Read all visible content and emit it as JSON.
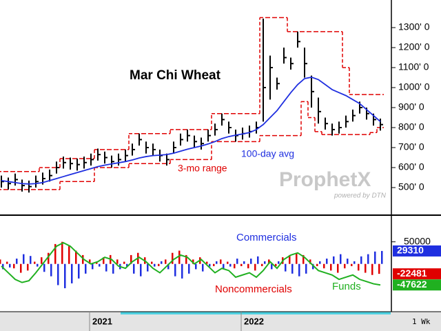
{
  "chart_data": [
    {
      "type": "hlc",
      "title": "Mar Chi Wheat",
      "interval": "1 Wk",
      "watermark": {
        "brand": "ProphetX",
        "tagline": "powered by DTN"
      },
      "categories": [
        null,
        null,
        null,
        null,
        null,
        null,
        null,
        null,
        null,
        null,
        null,
        null,
        null,
        "2021",
        null,
        null,
        null,
        null,
        null,
        null,
        null,
        null,
        null,
        null,
        null,
        null,
        null,
        null,
        null,
        null,
        null,
        null,
        null,
        null,
        null,
        "2022",
        null,
        null,
        null,
        null,
        null,
        null,
        null,
        null,
        null,
        null,
        null,
        null,
        null,
        null,
        null,
        null,
        null,
        null,
        null,
        null
      ],
      "close": [
        530,
        520,
        540,
        510,
        505,
        530,
        545,
        560,
        600,
        625,
        620,
        615,
        625,
        640,
        665,
        650,
        630,
        640,
        660,
        690,
        740,
        700,
        690,
        660,
        640,
        700,
        740,
        760,
        730,
        720,
        760,
        790,
        840,
        800,
        760,
        770,
        780,
        800,
        1000,
        1100,
        1020,
        1150,
        1120,
        1230,
        1120,
        980,
        880,
        820,
        790,
        800,
        830,
        860,
        900,
        870,
        840,
        815
      ],
      "high": [
        560,
        550,
        570,
        540,
        535,
        560,
        575,
        590,
        630,
        655,
        650,
        645,
        655,
        670,
        695,
        680,
        660,
        670,
        690,
        720,
        770,
        730,
        720,
        690,
        670,
        730,
        770,
        790,
        760,
        750,
        790,
        820,
        870,
        830,
        790,
        800,
        810,
        830,
        1345,
        1160,
        1050,
        1200,
        1150,
        1280,
        1200,
        1060,
        950,
        850,
        820,
        830,
        860,
        890,
        930,
        900,
        870,
        845
      ],
      "low": [
        500,
        490,
        510,
        480,
        475,
        500,
        515,
        530,
        570,
        595,
        590,
        585,
        595,
        610,
        635,
        620,
        600,
        610,
        630,
        660,
        710,
        670,
        660,
        630,
        610,
        670,
        710,
        730,
        700,
        690,
        730,
        760,
        810,
        770,
        730,
        740,
        750,
        770,
        830,
        940,
        990,
        1120,
        1090,
        1200,
        1050,
        900,
        820,
        790,
        760,
        770,
        800,
        830,
        870,
        840,
        810,
        785
      ],
      "series": [
        {
          "name": "100-day avg",
          "color": "#1f2fe0",
          "values": [
            535,
            530,
            525,
            520,
            518,
            520,
            525,
            535,
            545,
            555,
            565,
            575,
            585,
            595,
            605,
            612,
            618,
            624,
            630,
            638,
            648,
            655,
            660,
            662,
            665,
            672,
            682,
            692,
            700,
            708,
            718,
            730,
            745,
            755,
            762,
            768,
            775,
            790,
            815,
            850,
            885,
            930,
            975,
            1015,
            1045,
            1052,
            1040,
            1015,
            990,
            975,
            960,
            940,
            920,
            890,
            860,
            830
          ]
        },
        {
          "name": "3-mo range",
          "color": "#e00000",
          "upper": [
            580,
            580,
            580,
            580,
            580,
            580,
            600,
            600,
            600,
            645,
            645,
            645,
            645,
            645,
            690,
            690,
            690,
            690,
            690,
            770,
            770,
            770,
            770,
            770,
            770,
            790,
            790,
            790,
            790,
            790,
            790,
            870,
            870,
            870,
            870,
            870,
            870,
            870,
            1350,
            1350,
            1350,
            1350,
            1280,
            1280,
            1280,
            1280,
            1280,
            1280,
            1280,
            1280,
            1100,
            965,
            965,
            965,
            965,
            965
          ],
          "lower": [
            490,
            490,
            490,
            490,
            490,
            490,
            490,
            490,
            490,
            530,
            530,
            530,
            530,
            530,
            600,
            600,
            600,
            600,
            600,
            620,
            620,
            620,
            620,
            620,
            620,
            640,
            640,
            640,
            640,
            640,
            640,
            730,
            730,
            730,
            730,
            730,
            730,
            730,
            760,
            760,
            760,
            760,
            760,
            760,
            930,
            850,
            780,
            765,
            765,
            765,
            765,
            765,
            765,
            765,
            775,
            800
          ]
        }
      ],
      "ylim": [
        369,
        1438
      ],
      "yticks": [
        {
          "value": 500,
          "label": "500' 0"
        },
        {
          "value": 600,
          "label": "600' 0"
        },
        {
          "value": 700,
          "label": "700' 0"
        },
        {
          "value": 800,
          "label": "800' 0"
        },
        {
          "value": 900,
          "label": "900' 0"
        },
        {
          "value": 1000,
          "label": "1000' 0"
        },
        {
          "value": 1100,
          "label": "1100' 0"
        },
        {
          "value": 1200,
          "label": "1200' 0"
        },
        {
          "value": 1300,
          "label": "1300' 0"
        }
      ]
    },
    {
      "type": "bar",
      "series": [
        {
          "name": "Commercials",
          "color": "#1f2fe0",
          "values": [
            -12000,
            -8000,
            12000,
            22000,
            18000,
            -6000,
            -18000,
            -28000,
            -48000,
            -55000,
            -44000,
            -33000,
            -22000,
            -12000,
            -6000,
            -17000,
            -22000,
            -12000,
            -6000,
            -22000,
            -28000,
            -17000,
            -6000,
            6000,
            -12000,
            -28000,
            -33000,
            -22000,
            -12000,
            -17000,
            -6000,
            6000,
            -12000,
            -6000,
            12000,
            6000,
            12000,
            17000,
            6000,
            -12000,
            6000,
            -17000,
            -22000,
            -28000,
            -22000,
            -12000,
            6000,
            12000,
            17000,
            22000,
            12000,
            6000,
            17000,
            22000,
            28000,
            29310
          ]
        },
        {
          "name": "Noncommercials",
          "color": "#e00000",
          "values": [
            10000,
            5000,
            -10000,
            -20000,
            -15000,
            5000,
            15000,
            25000,
            45000,
            50000,
            40000,
            30000,
            20000,
            10000,
            5000,
            15000,
            20000,
            10000,
            5000,
            20000,
            25000,
            15000,
            5000,
            -5000,
            10000,
            25000,
            30000,
            20000,
            10000,
            15000,
            5000,
            -5000,
            10000,
            5000,
            -10000,
            -5000,
            -10000,
            -15000,
            -5000,
            10000,
            -5000,
            15000,
            20000,
            25000,
            20000,
            10000,
            -5000,
            -10000,
            -15000,
            -20000,
            -10000,
            -5000,
            -15000,
            -20000,
            -25000,
            -22481
          ]
        },
        {
          "name": "Funds",
          "color": "#20b020",
          "type": "line",
          "values": [
            -5000,
            -20000,
            -35000,
            -42000,
            -38000,
            -20000,
            0,
            20000,
            40000,
            48000,
            40000,
            25000,
            10000,
            0,
            5000,
            15000,
            10000,
            -5000,
            -10000,
            5000,
            15000,
            5000,
            -10000,
            -20000,
            -5000,
            10000,
            20000,
            15000,
            0,
            10000,
            -5000,
            -20000,
            -10000,
            -15000,
            -30000,
            -25000,
            -20000,
            -30000,
            -15000,
            5000,
            -10000,
            10000,
            20000,
            25000,
            15000,
            0,
            -15000,
            -20000,
            -25000,
            -35000,
            -30000,
            -25000,
            -35000,
            -40000,
            -45000,
            -47622
          ]
        }
      ],
      "ylim": [
        -105000,
        101000
      ],
      "yticks": [
        50000
      ]
    }
  ]
}
